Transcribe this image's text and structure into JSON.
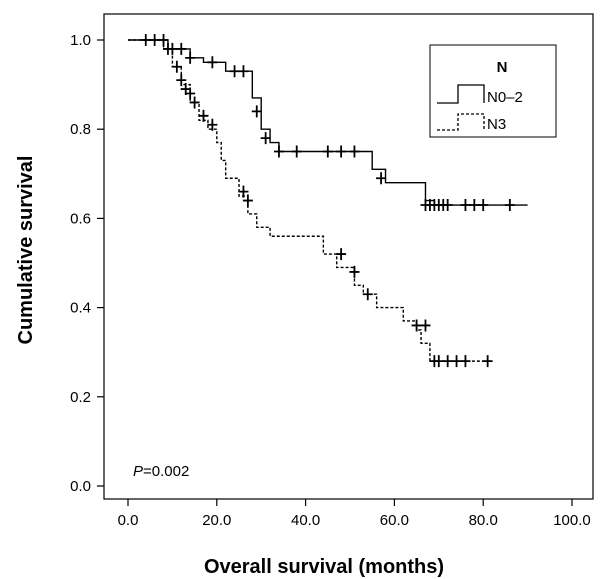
{
  "chart_data": {
    "type": "line",
    "xlabel": "Overall survival (months)",
    "ylabel": "Cumulative survival",
    "xlim": [
      0,
      100
    ],
    "ylim": [
      0,
      1.0
    ],
    "xticks": [
      "0.0",
      "20.0",
      "40.0",
      "60.0",
      "80.0",
      "100.0"
    ],
    "yticks": [
      "0.0",
      "0.2",
      "0.4",
      "0.6",
      "0.8",
      "1.0"
    ],
    "legend": {
      "title": "N",
      "position": "top-right"
    },
    "annotation": {
      "italic": "P",
      "rest": "=0.002"
    },
    "series": [
      {
        "name": "N0–2",
        "style": "solid",
        "color": "#000000",
        "steps": [
          [
            0,
            1.0
          ],
          [
            9,
            0.98
          ],
          [
            14,
            0.96
          ],
          [
            17,
            0.95
          ],
          [
            22,
            0.93
          ],
          [
            28,
            0.87
          ],
          [
            30,
            0.8
          ],
          [
            32,
            0.77
          ],
          [
            34,
            0.75
          ],
          [
            55,
            0.71
          ],
          [
            58,
            0.68
          ],
          [
            67,
            0.64
          ],
          [
            69,
            0.63
          ],
          [
            90,
            0.63
          ]
        ],
        "censor": [
          [
            4,
            1.0
          ],
          [
            6,
            1.0
          ],
          [
            8,
            1.0
          ],
          [
            10,
            0.98
          ],
          [
            12,
            0.98
          ],
          [
            14,
            0.96
          ],
          [
            19,
            0.95
          ],
          [
            24,
            0.93
          ],
          [
            26,
            0.93
          ],
          [
            29,
            0.84
          ],
          [
            31,
            0.78
          ],
          [
            34,
            0.75
          ],
          [
            38,
            0.75
          ],
          [
            45,
            0.75
          ],
          [
            48,
            0.75
          ],
          [
            51,
            0.75
          ],
          [
            57,
            0.69
          ],
          [
            67,
            0.63
          ],
          [
            68,
            0.63
          ],
          [
            69,
            0.63
          ],
          [
            70,
            0.63
          ],
          [
            71,
            0.63
          ],
          [
            72,
            0.63
          ],
          [
            76,
            0.63
          ],
          [
            78,
            0.63
          ],
          [
            80,
            0.63
          ],
          [
            86,
            0.63
          ]
        ]
      },
      {
        "name": "N3",
        "style": "dashed",
        "color": "#000000",
        "steps": [
          [
            0,
            1.0
          ],
          [
            8,
            0.98
          ],
          [
            10,
            0.94
          ],
          [
            12,
            0.9
          ],
          [
            14,
            0.86
          ],
          [
            16,
            0.82
          ],
          [
            18,
            0.8
          ],
          [
            20,
            0.77
          ],
          [
            21,
            0.73
          ],
          [
            22,
            0.69
          ],
          [
            25,
            0.65
          ],
          [
            27,
            0.61
          ],
          [
            29,
            0.58
          ],
          [
            32,
            0.56
          ],
          [
            44,
            0.52
          ],
          [
            47,
            0.49
          ],
          [
            51,
            0.45
          ],
          [
            53,
            0.43
          ],
          [
            56,
            0.4
          ],
          [
            62,
            0.37
          ],
          [
            65,
            0.35
          ],
          [
            66,
            0.32
          ],
          [
            68,
            0.28
          ],
          [
            82,
            0.28
          ]
        ],
        "censor": [
          [
            9,
            0.98
          ],
          [
            11,
            0.94
          ],
          [
            12,
            0.91
          ],
          [
            13,
            0.89
          ],
          [
            14,
            0.88
          ],
          [
            15,
            0.86
          ],
          [
            17,
            0.83
          ],
          [
            19,
            0.81
          ],
          [
            26,
            0.66
          ],
          [
            27,
            0.64
          ],
          [
            48,
            0.52
          ],
          [
            51,
            0.48
          ],
          [
            54,
            0.43
          ],
          [
            65,
            0.36
          ],
          [
            67,
            0.36
          ],
          [
            69,
            0.28
          ],
          [
            70,
            0.28
          ],
          [
            72,
            0.28
          ],
          [
            74,
            0.28
          ],
          [
            76,
            0.28
          ],
          [
            81,
            0.28
          ]
        ]
      }
    ]
  }
}
